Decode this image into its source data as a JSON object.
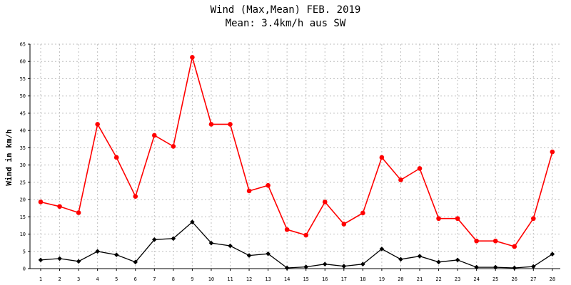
{
  "chart_data": {
    "type": "line",
    "title": "Wind (Max,Mean) FEB. 2019",
    "subtitle": "Mean: 3.4km/h aus SW",
    "xlabel": "",
    "ylabel": "Wind in km/h",
    "ylim": [
      0,
      65
    ],
    "ytick_step": 5,
    "grid": true,
    "categories": [
      "1",
      "2",
      "3",
      "4",
      "5",
      "6",
      "7",
      "8",
      "9",
      "10",
      "11",
      "12",
      "13",
      "14",
      "15",
      "16",
      "17",
      "18",
      "19",
      "20",
      "21",
      "22",
      "23",
      "24",
      "25",
      "26",
      "27",
      "28"
    ],
    "series": [
      {
        "color": "#ff0000",
        "marker": "circle",
        "values": [
          19.3,
          18.0,
          16.2,
          41.8,
          32.2,
          20.9,
          38.6,
          35.4,
          61.2,
          41.8,
          41.8,
          22.5,
          24.1,
          11.3,
          9.7,
          19.3,
          12.9,
          16.1,
          32.2,
          25.7,
          29.0,
          14.5,
          14.5,
          8.0,
          8.0,
          6.4,
          14.5,
          33.8
        ]
      },
      {
        "color": "#000000",
        "marker": "diamond",
        "values": [
          2.5,
          2.9,
          2.1,
          5.0,
          4.0,
          1.9,
          8.4,
          8.7,
          13.5,
          7.4,
          6.6,
          3.8,
          4.3,
          0.2,
          0.5,
          1.3,
          0.7,
          1.3,
          5.7,
          2.7,
          3.6,
          1.9,
          2.5,
          0.4,
          0.4,
          0.2,
          0.6,
          4.2
        ]
      }
    ]
  }
}
